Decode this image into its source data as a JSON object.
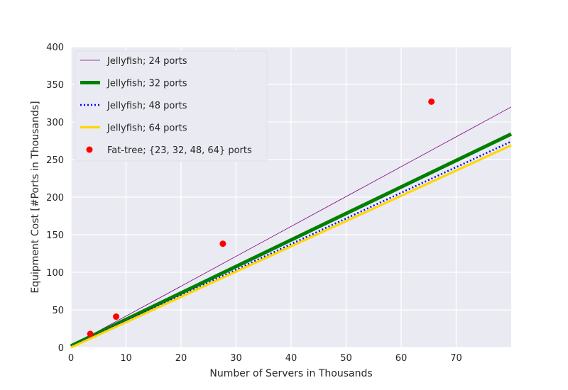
{
  "chart_data": {
    "type": "line",
    "title": "",
    "xlabel": "Number of Servers in Thousands",
    "ylabel": "Equipment Cost [#Ports in Thousands]",
    "xlim": [
      0,
      80
    ],
    "ylim": [
      0,
      400
    ],
    "xticks": [
      0,
      10,
      20,
      30,
      40,
      50,
      60,
      70
    ],
    "yticks": [
      0,
      50,
      100,
      150,
      200,
      250,
      300,
      350,
      400
    ],
    "grid": true,
    "background": "#eaeaf2",
    "legend_position": "top-left",
    "series": [
      {
        "name": "Jellyfish; 24 ports",
        "kind": "line",
        "style": "solid",
        "color": "#800080",
        "x": [
          0,
          80
        ],
        "y": [
          2,
          320
        ]
      },
      {
        "name": "Jellyfish; 32 ports",
        "kind": "line",
        "style": "solid",
        "color": "#008000",
        "x": [
          0,
          80
        ],
        "y": [
          2,
          284
        ]
      },
      {
        "name": "Jellyfish; 48 ports",
        "kind": "line",
        "style": "dotted",
        "color": "#0000ff",
        "x": [
          0,
          80
        ],
        "y": [
          1,
          274
        ]
      },
      {
        "name": "Jellyfish; 64 ports",
        "kind": "line",
        "style": "solid",
        "color": "#ffd700",
        "x": [
          0,
          80
        ],
        "y": [
          0,
          269
        ]
      },
      {
        "name": "Fat-tree; {23, 32, 48, 64} ports",
        "kind": "scatter",
        "color": "#ff0000",
        "x": [
          3.5,
          8.2,
          27.6,
          65.5
        ],
        "y": [
          18,
          41,
          138,
          327
        ]
      }
    ]
  }
}
